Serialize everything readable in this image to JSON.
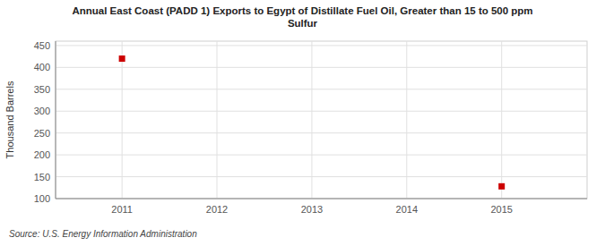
{
  "chart_data": {
    "type": "scatter",
    "title": "Annual East Coast (PADD 1) Exports to Egypt of Distillate Fuel Oil, Greater than 15 to 500 ppm\nSulfur",
    "y_label": "Thousand Barrels",
    "source": "Source: U.S. Energy Information Administration",
    "x": [
      2011,
      2015
    ],
    "values": [
      420,
      128
    ],
    "color": "#cc0000",
    "marker": "square",
    "xlim": [
      2010.3,
      2015.9
    ],
    "ylim": [
      100,
      460
    ],
    "xticks": [
      2011,
      2012,
      2013,
      2014,
      2015
    ],
    "yticks": [
      100,
      150,
      200,
      250,
      300,
      350,
      400,
      450
    ],
    "grid": true
  }
}
